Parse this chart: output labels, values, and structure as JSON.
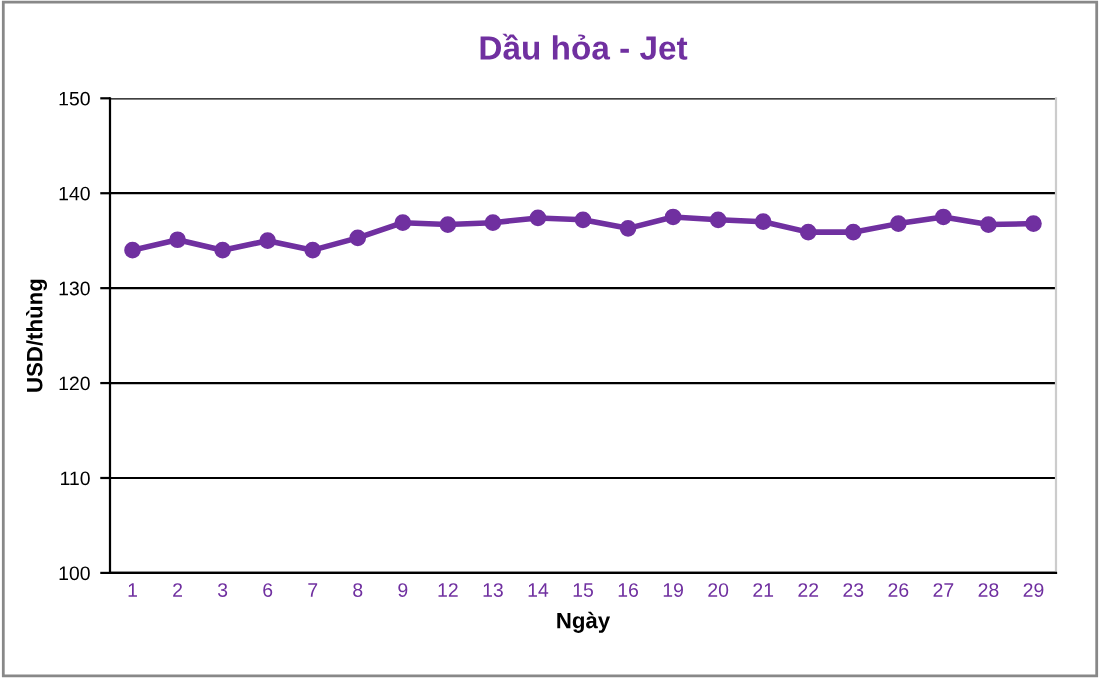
{
  "chart_data": {
    "type": "line",
    "title": "Dầu hỏa - Jet",
    "xlabel": "Ngày",
    "ylabel": "USD/thùng",
    "categories": [
      "1",
      "2",
      "3",
      "6",
      "7",
      "8",
      "9",
      "12",
      "13",
      "14",
      "15",
      "16",
      "19",
      "20",
      "21",
      "22",
      "23",
      "26",
      "27",
      "28",
      "29"
    ],
    "series": [
      {
        "color": "#7030a0",
        "values": [
          134,
          135.1,
          134,
          135,
          134,
          135.3,
          136.9,
          136.7,
          136.9,
          137.4,
          137.2,
          136.3,
          137.5,
          137.2,
          137,
          135.9,
          135.9,
          136.8,
          137.5,
          136.7,
          136.8
        ]
      }
    ],
    "ylim": [
      100,
      150
    ],
    "yticks": [
      100,
      110,
      120,
      130,
      140,
      150
    ],
    "grid": "y",
    "marker": "circle",
    "line_style": "solid"
  }
}
